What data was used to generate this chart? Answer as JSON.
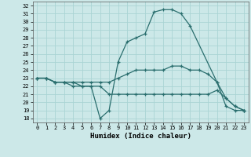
{
  "xlabel": "Humidex (Indice chaleur)",
  "background_color": "#cce8e8",
  "grid_color": "#aad4d4",
  "line_color": "#2a6e6e",
  "xlim": [
    -0.5,
    23.5
  ],
  "ylim": [
    17.5,
    32.5
  ],
  "yticks": [
    18,
    19,
    20,
    21,
    22,
    23,
    24,
    25,
    26,
    27,
    28,
    29,
    30,
    31,
    32
  ],
  "xticks": [
    0,
    1,
    2,
    3,
    4,
    5,
    6,
    7,
    8,
    9,
    10,
    11,
    12,
    13,
    14,
    15,
    16,
    17,
    18,
    19,
    20,
    21,
    22,
    23
  ],
  "lines": [
    {
      "x": [
        0,
        1,
        2,
        3,
        4,
        5,
        6,
        7,
        8,
        9,
        10,
        11,
        12,
        13,
        14,
        15,
        16,
        17,
        20,
        21,
        22,
        23
      ],
      "y": [
        23,
        23,
        22.5,
        22.5,
        22,
        22,
        22,
        18,
        19,
        25,
        27.5,
        28,
        28.5,
        31.2,
        31.5,
        31.5,
        31,
        29.5,
        22.5,
        19.5,
        19,
        19
      ]
    },
    {
      "x": [
        0,
        1,
        2,
        3,
        4,
        5,
        6,
        7,
        8,
        9,
        10,
        11,
        12,
        13,
        14,
        15,
        16,
        17,
        18,
        19,
        20,
        21,
        22,
        23
      ],
      "y": [
        23,
        23,
        22.5,
        22.5,
        22.5,
        22.5,
        22.5,
        22.5,
        22.5,
        23,
        23.5,
        24,
        24,
        24,
        24,
        24.5,
        24.5,
        24,
        24,
        23.5,
        22.5,
        20.5,
        19.5,
        19
      ]
    },
    {
      "x": [
        0,
        1,
        2,
        3,
        4,
        5,
        6,
        7,
        8,
        9,
        10,
        11,
        12,
        13,
        14,
        15,
        16,
        17,
        18,
        19,
        20,
        21,
        22,
        23
      ],
      "y": [
        23,
        23,
        22.5,
        22.5,
        22.5,
        22,
        22,
        22,
        21,
        21,
        21,
        21,
        21,
        21,
        21,
        21,
        21,
        21,
        21,
        21,
        21.5,
        20.5,
        19.5,
        19
      ]
    }
  ]
}
